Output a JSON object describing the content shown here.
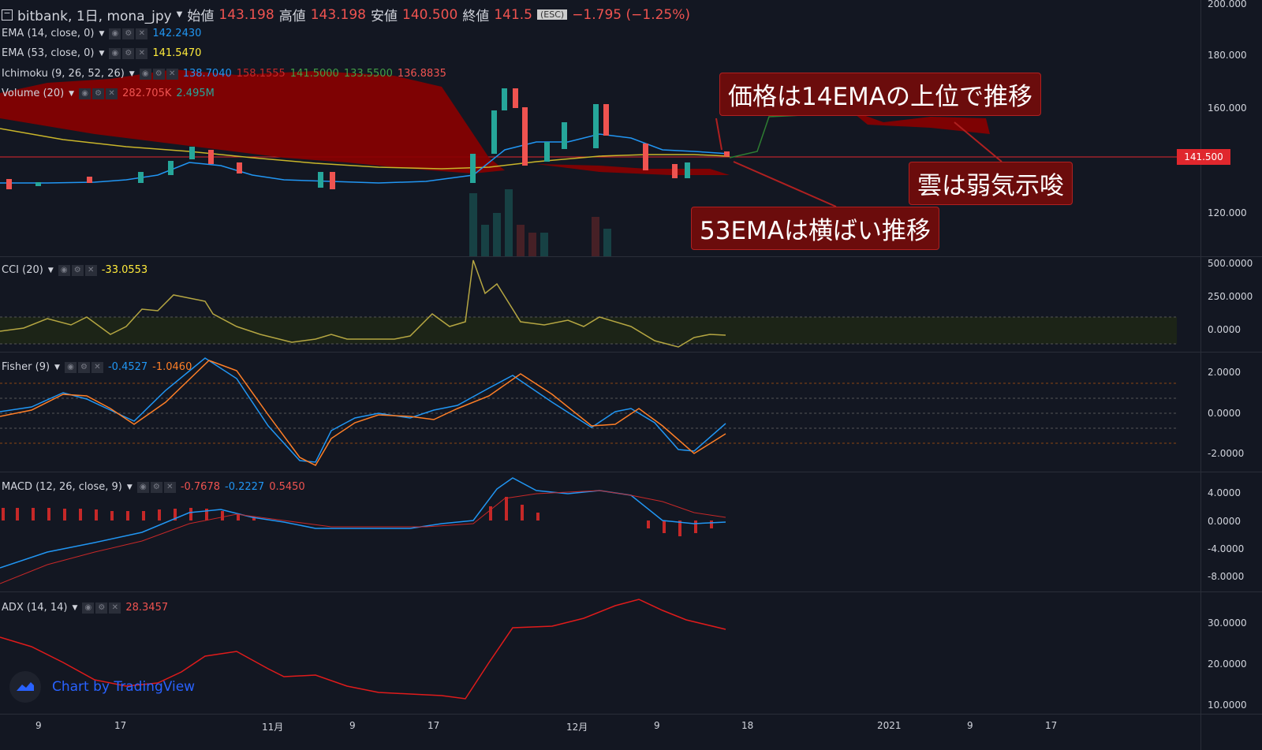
{
  "header": {
    "symbol": "bitbank, 1日, mona_jpy",
    "open_label": "始値",
    "open_value": "143.198",
    "high_label": "高値",
    "high_value": "143.198",
    "low_label": "安値",
    "low_value": "140.500",
    "close_label": "終値",
    "close_value": "141.5",
    "change": "−1.795 (−1.25%)",
    "esc_hint": "(ESC)"
  },
  "indicators": {
    "ema14": {
      "name": "EMA (14, close, 0)",
      "value": "142.2430",
      "color": "#2196f3"
    },
    "ema53": {
      "name": "EMA (53, close, 0)",
      "value": "141.5470",
      "color": "#ffeb3b"
    },
    "ichimoku": {
      "name": "Ichimoku (9, 26, 52, 26)",
      "v1": "138.7040",
      "v2": "158.1555",
      "v3": "141.5000",
      "v4": "133.5500",
      "v5": "136.8835"
    },
    "volume": {
      "name": "Volume (20)",
      "v1": "282.705K",
      "v2": "2.495M"
    },
    "cci": {
      "name": "CCI (20)",
      "value": "-33.0553"
    },
    "fisher": {
      "name": "Fisher (9)",
      "v1": "-0.4527",
      "v2": "-1.0460"
    },
    "macd": {
      "name": "MACD (12, 26, close, 9)",
      "v1": "-0.7678",
      "v2": "-0.2227",
      "v3": "0.5450"
    },
    "adx": {
      "name": "ADX (14, 14)",
      "value": "28.3457"
    }
  },
  "price_axis": [
    "200.000",
    "180.000",
    "160.000",
    "120.000"
  ],
  "last_price": "141.500",
  "cci_axis": [
    "500.0000",
    "250.0000",
    "0.0000"
  ],
  "fisher_axis": [
    "2.0000",
    "0.0000",
    "-2.0000"
  ],
  "macd_axis": [
    "4.0000",
    "0.0000",
    "-4.0000",
    "-8.0000"
  ],
  "adx_axis": [
    "30.0000",
    "20.0000",
    "10.0000"
  ],
  "time_axis": [
    "9",
    "17",
    "11月",
    "9",
    "17",
    "12月",
    "9",
    "18",
    "2021",
    "9",
    "17"
  ],
  "callouts": {
    "c1": "価格は14EMAの上位で推移",
    "c2": "雲は弱気示唆",
    "c3": "53EMAは横ばい推移"
  },
  "branding": "Chart by TradingView",
  "colors": {
    "up": "#26a69a",
    "down": "#ef5350",
    "cloud": "#8b0000",
    "cci": "#b5a642",
    "fisher1": "#2196f3",
    "fisher2": "#ff7f27",
    "macd": "#2196f3",
    "signal": "#c62828",
    "adx": "#e01b1b"
  },
  "chart_data": [
    {
      "type": "candlestick",
      "series": [
        {
          "name": "EMA (14, close, 0)"
        },
        {
          "name": "EMA (53, close, 0)"
        }
      ],
      "ylim": [
        100,
        200
      ]
    },
    {
      "type": "line",
      "series": [
        {
          "name": "CCI (20)"
        }
      ],
      "ylim": [
        -250,
        500
      ]
    },
    {
      "type": "line",
      "series": [
        {
          "name": "Fisher (9)"
        }
      ],
      "ylim": [
        -3,
        3
      ]
    },
    {
      "type": "line",
      "series": [
        {
          "name": "MACD (12, 26, close, 9)"
        }
      ],
      "ylim": [
        -10,
        5
      ]
    },
    {
      "type": "line",
      "series": [
        {
          "name": "ADX (14, 14)"
        }
      ],
      "ylim": [
        8,
        38
      ]
    }
  ]
}
